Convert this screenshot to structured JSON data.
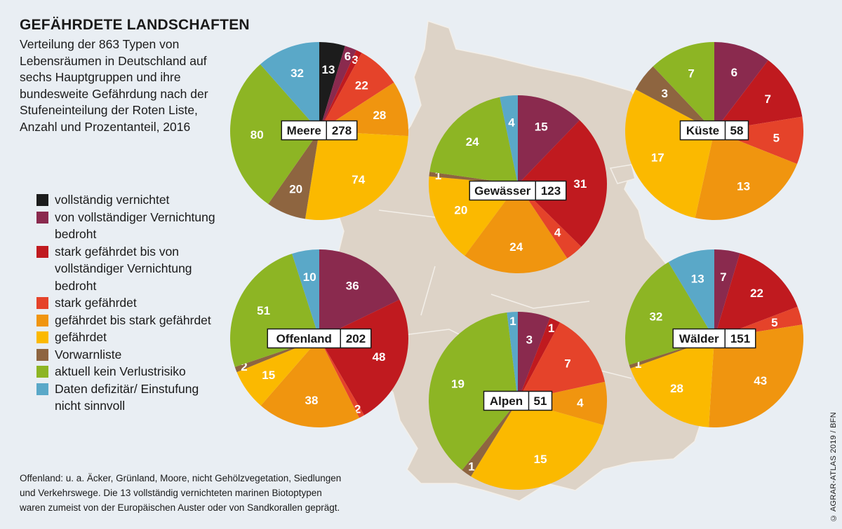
{
  "title": "GEFÄHRDETE LANDSCHAFTEN",
  "subtitle": "Verteilung der 863 Typen von Lebensräumen in Deutschland auf sechs Hauptgruppen und ihre bundesweite Gefährdung nach der Stufeneinteilung der Roten Liste, Anzahl und Prozentanteil, 2016",
  "footnote": "Offenland: u. a. Äcker, Grünland, Moore, nicht Gehölzvegetation, Siedlungen und Verkehrswege. Die 13 vollständig vernichteten marinen Biotoptypen waren zumeist von der Europäischen Auster oder von Sandkorallen geprägt.",
  "credit": "© AGRAR-ATLAS 2019 / BFN",
  "legend": [
    {
      "label": "vollständig vernichtet",
      "color": "#1c1c1c"
    },
    {
      "label": "von vollständiger Vernichtung bedroht",
      "color": "#8a2a4e"
    },
    {
      "label": "stark gefährdet bis von vollständiger Vernichtung bedroht",
      "color": "#c01a1f"
    },
    {
      "label": "stark gefährdet",
      "color": "#e5432a"
    },
    {
      "label": "gefährdet bis stark gefährdet",
      "color": "#f0950f"
    },
    {
      "label": "gefährdet",
      "color": "#fbb900"
    },
    {
      "label": "Vorwarnliste",
      "color": "#8e6540"
    },
    {
      "label": "aktuell kein Verlustrisiko",
      "color": "#8db524"
    },
    {
      "label": "Daten defizitär/ Einstufung nicht sinnvoll",
      "color": "#5aa8c8"
    }
  ],
  "chart_data": [
    {
      "type": "pie",
      "title": "Meere",
      "total": 278,
      "values": [
        13,
        6,
        3,
        22,
        28,
        74,
        20,
        80,
        32
      ]
    },
    {
      "type": "pie",
      "title": "Gewässer",
      "total": 123,
      "values": [
        0,
        15,
        31,
        4,
        24,
        20,
        1,
        24,
        4
      ]
    },
    {
      "type": "pie",
      "title": "Küste",
      "total": 58,
      "values": [
        0,
        6,
        7,
        5,
        13,
        17,
        3,
        7,
        0
      ]
    },
    {
      "type": "pie",
      "title": "Offenland",
      "total": 202,
      "values": [
        0,
        36,
        48,
        2,
        38,
        15,
        2,
        51,
        10
      ]
    },
    {
      "type": "pie",
      "title": "Alpen",
      "total": 51,
      "values": [
        0,
        3,
        1,
        7,
        4,
        15,
        1,
        19,
        1
      ]
    },
    {
      "type": "pie",
      "title": "Wälder",
      "total": 151,
      "values": [
        0,
        7,
        22,
        5,
        43,
        28,
        1,
        32,
        13
      ]
    }
  ]
}
